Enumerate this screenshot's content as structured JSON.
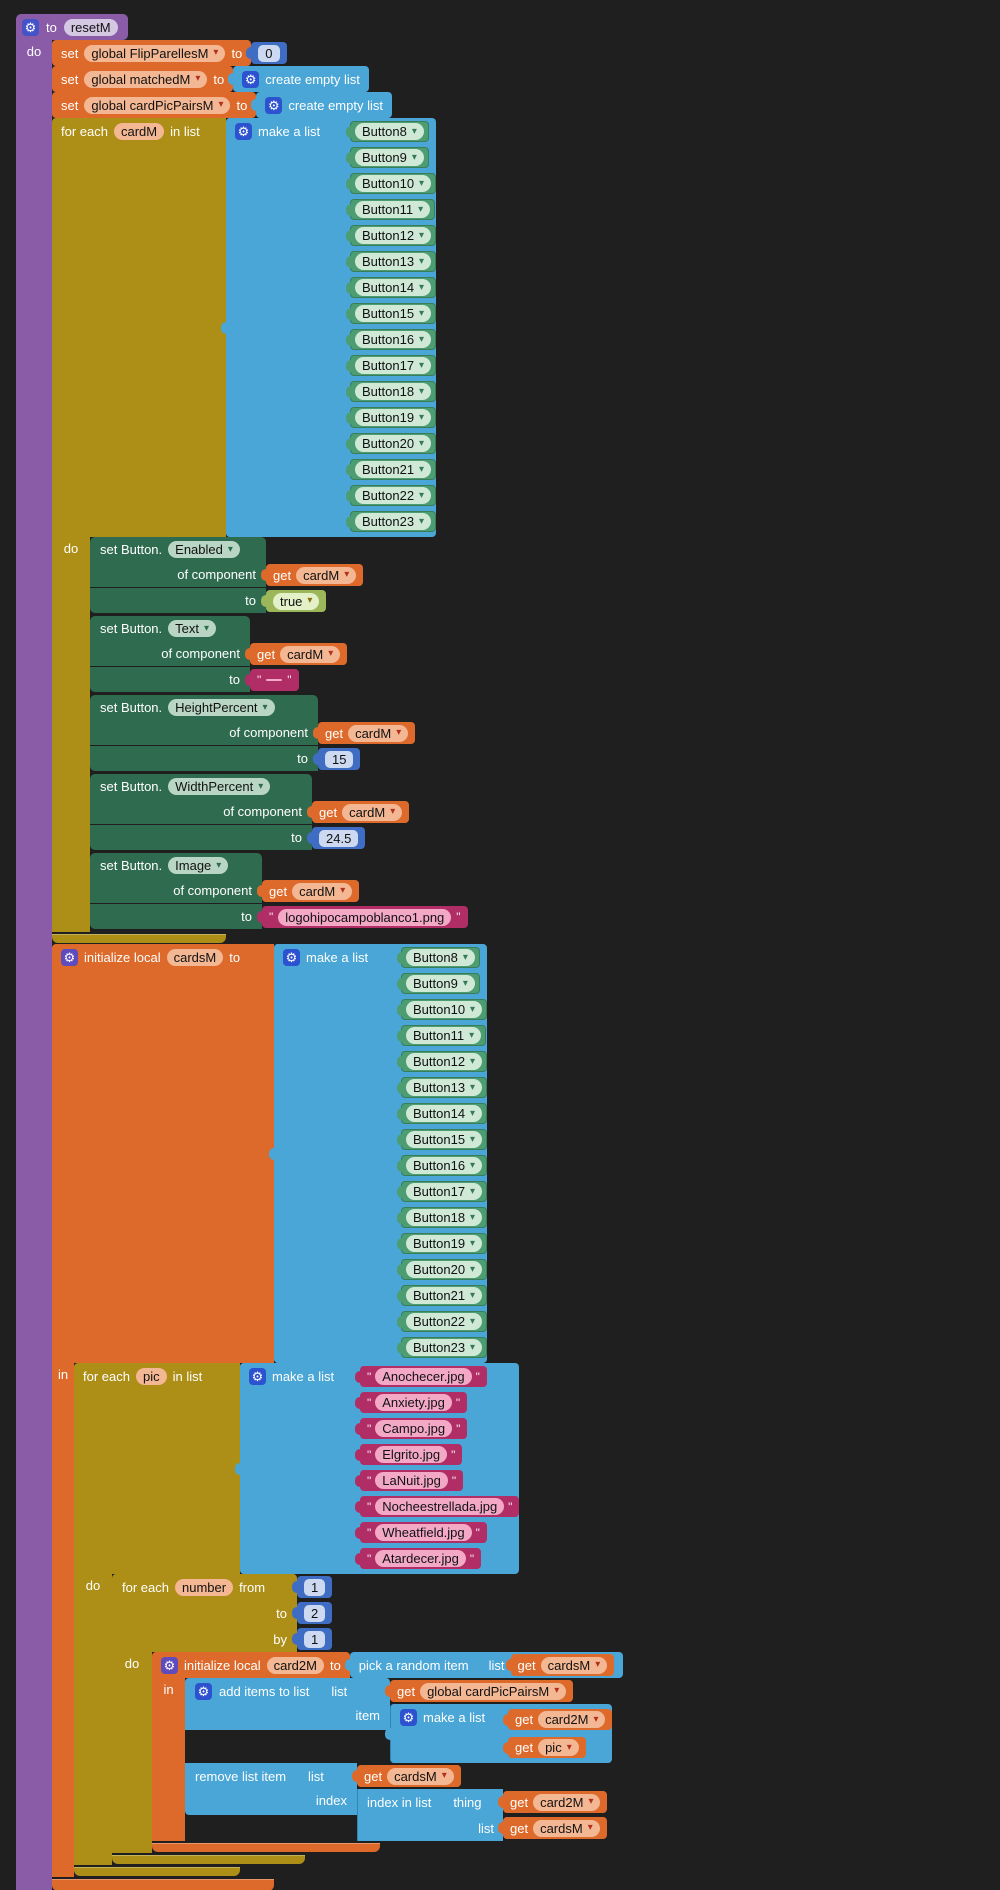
{
  "colors": {
    "bg": "#1f1f1f",
    "purple": "#8a5ba6",
    "orange": "#dd6a2b",
    "olive": "#ad8e16",
    "blue": "#49a6d6",
    "mathblue": "#3f6dc3",
    "setgreen": "#2f6b4f",
    "compgreen": "#4d9d72",
    "magenta": "#b02d65",
    "logic": "#9cb75a"
  },
  "icons": {
    "gear": "⚙",
    "dropdown": "▾",
    "quote": "\""
  },
  "proc": {
    "kw": "to",
    "name": "resetM",
    "do": "do",
    "in": "in"
  },
  "labels": {
    "make_a_list": "make a list",
    "get": "get",
    "for_each": "for each",
    "in_list": "in list",
    "do": "do",
    "in": "in"
  },
  "sets": [
    {
      "kw": "set",
      "var": "global FlipParellesM",
      "to": "to",
      "val": "0"
    },
    {
      "kw": "set",
      "var": "global matchedM",
      "to": "to",
      "val": "create empty list"
    },
    {
      "kw": "set",
      "var": "global cardPicPairsM",
      "to": "to",
      "val": "create empty list"
    }
  ],
  "lists": {
    "buttons": [
      "Button8",
      "Button9",
      "Button10",
      "Button11",
      "Button12",
      "Button13",
      "Button14",
      "Button15",
      "Button16",
      "Button17",
      "Button18",
      "Button19",
      "Button20",
      "Button21",
      "Button22",
      "Button23"
    ],
    "pics": [
      "Anochecer.jpg",
      "Anxiety.jpg",
      "Campo.jpg",
      "Elgrito.jpg",
      "LaNuit.jpg",
      "Nocheestrellada.jpg",
      "Wheatfield.jpg",
      "Atardecer.jpg"
    ]
  },
  "fe_card": {
    "var": "cardM"
  },
  "setters": {
    "enabled": {
      "title": "set Button.",
      "prop": "Enabled",
      "of": "of component",
      "var": "cardM",
      "to": "to",
      "val": "true"
    },
    "text": {
      "title": "set Button.",
      "prop": "Text",
      "of": "of component",
      "var": "cardM",
      "to": "to",
      "val": ""
    },
    "height": {
      "title": "set Button.",
      "prop": "HeightPercent",
      "of": "of component",
      "var": "cardM",
      "to": "to",
      "val": "15"
    },
    "width": {
      "title": "set Button.",
      "prop": "WidthPercent",
      "of": "of component",
      "var": "cardM",
      "to": "to",
      "val": "24.5"
    },
    "image": {
      "title": "set Button.",
      "prop": "Image",
      "of": "of component",
      "var": "cardM",
      "to": "to",
      "val": "logohipocampoblanco1.png"
    }
  },
  "init_cards": {
    "kw": "initialize local",
    "name": "cardsM",
    "to": "to"
  },
  "fe_pic": {
    "var": "pic"
  },
  "fe_num": {
    "var": "number",
    "from": "from",
    "from_val": "1",
    "to": "to",
    "to_val": "2",
    "by": "by",
    "by_val": "1"
  },
  "init_card2": {
    "kw": "initialize local",
    "name": "card2M",
    "to": "to",
    "pick": "pick a random item",
    "list": "list",
    "cards": "cardsM"
  },
  "add_items": {
    "kw": "add items to list",
    "list": "list",
    "target": "global cardPicPairsM",
    "item": "item",
    "v1": "card2M",
    "v2": "pic"
  },
  "remove": {
    "kw": "remove list item",
    "list": "list",
    "cards": "cardsM",
    "index": "index",
    "idx_kw": "index in list",
    "thing": "thing",
    "v1": "card2M",
    "list2": "list",
    "v2": "cardsM"
  }
}
